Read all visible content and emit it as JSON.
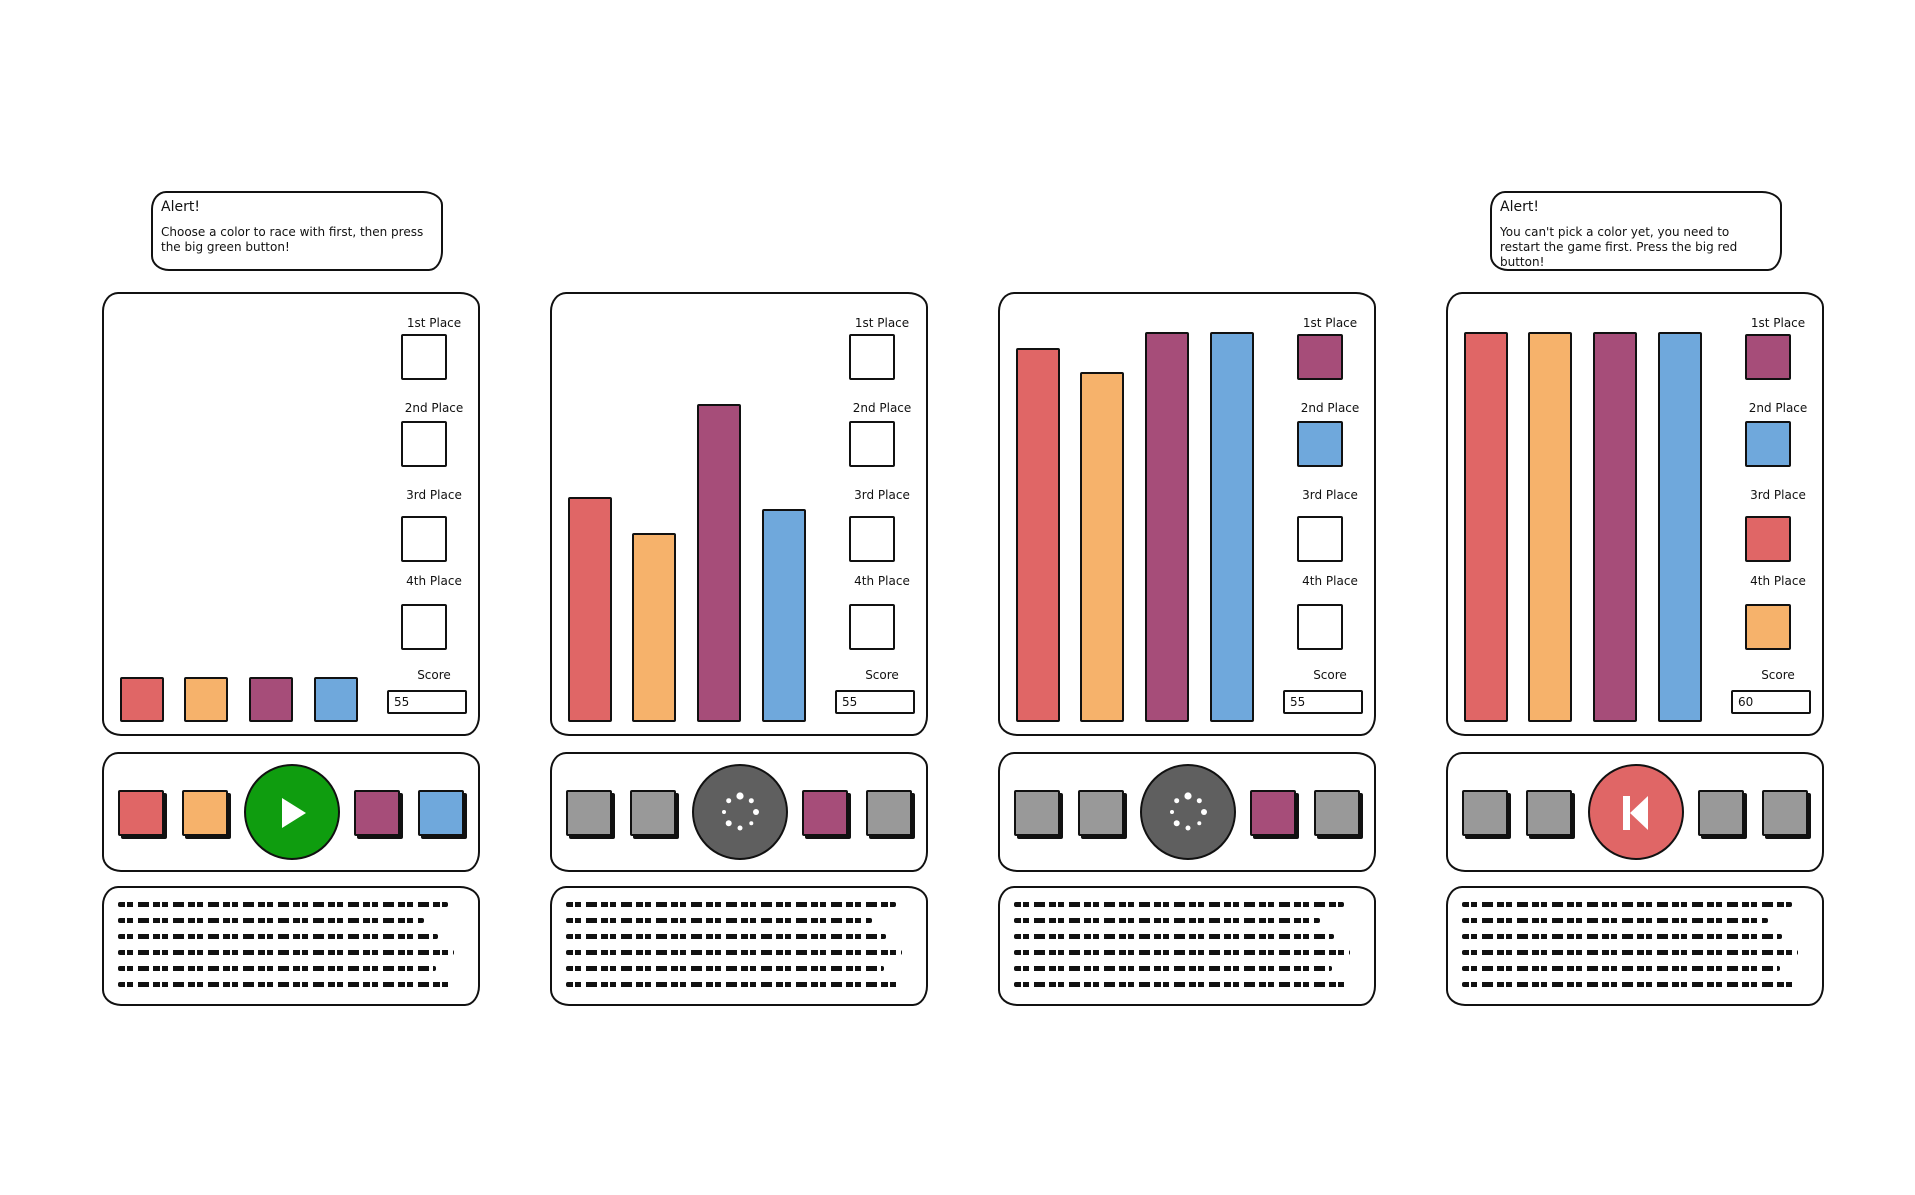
{
  "alerts": [
    {
      "title": "Alert!",
      "message": "Choose a color to race with first, then press the big green button!"
    },
    {
      "title": "Alert!",
      "message": "You can't pick a color yet, you need to restart the game first. Press the big red button!"
    }
  ],
  "colors": {
    "red": "#e06666",
    "orange": "#f6b26b",
    "purple": "#a64d79",
    "blue": "#6fa8dc",
    "gray": "#999999",
    "green": "#0f9d0f",
    "dark": "#5f5f5f"
  },
  "place_labels": [
    "1st Place",
    "2nd Place",
    "3rd Place",
    "4th Place"
  ],
  "score_label": "Score",
  "screens": [
    {
      "bars": [
        0,
        0,
        0,
        0
      ],
      "places": [
        null,
        null,
        null,
        null
      ],
      "score": "55",
      "controls": [
        "red",
        "orange",
        "purple",
        "blue"
      ],
      "big_button": "play-icon"
    },
    {
      "bars": [
        0.56,
        0.47,
        0.79,
        0.53
      ],
      "places": [
        null,
        null,
        null,
        null
      ],
      "score": "55",
      "controls": [
        "gray",
        "gray",
        "purple",
        "gray"
      ],
      "big_button": "loading-icon"
    },
    {
      "bars": [
        0.93,
        0.87,
        0.97,
        0.97
      ],
      "places": [
        "purple",
        "blue",
        null,
        null
      ],
      "score": "55",
      "controls": [
        "gray",
        "gray",
        "purple",
        "gray"
      ],
      "big_button": "loading-icon"
    },
    {
      "bars": [
        0.97,
        0.97,
        0.97,
        0.97
      ],
      "places": [
        "purple",
        "blue",
        "red",
        "orange"
      ],
      "score": "60",
      "controls": [
        "gray",
        "gray",
        "gray",
        "gray"
      ],
      "big_button": "restart-icon"
    }
  ]
}
